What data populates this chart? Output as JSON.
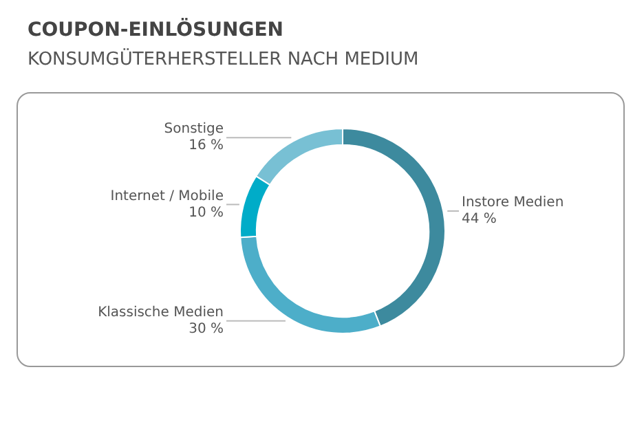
{
  "chart_data": {
    "type": "donut",
    "title": "COUPON-EINLÖSUNGEN",
    "subtitle": "KONSUMGÜTERHERSTELLER NACH MEDIUM",
    "categories": [
      "Instore Medien",
      "Klassische Medien",
      "Internet / Mobile",
      "Sonstige"
    ],
    "values": [
      44,
      30,
      10,
      16
    ],
    "colors": [
      "#3d8a9e",
      "#4daec9",
      "#00acc8",
      "#78c0d4"
    ],
    "value_labels": [
      "44 %",
      "30 %",
      "10 %",
      "16 %"
    ],
    "legend": false
  }
}
